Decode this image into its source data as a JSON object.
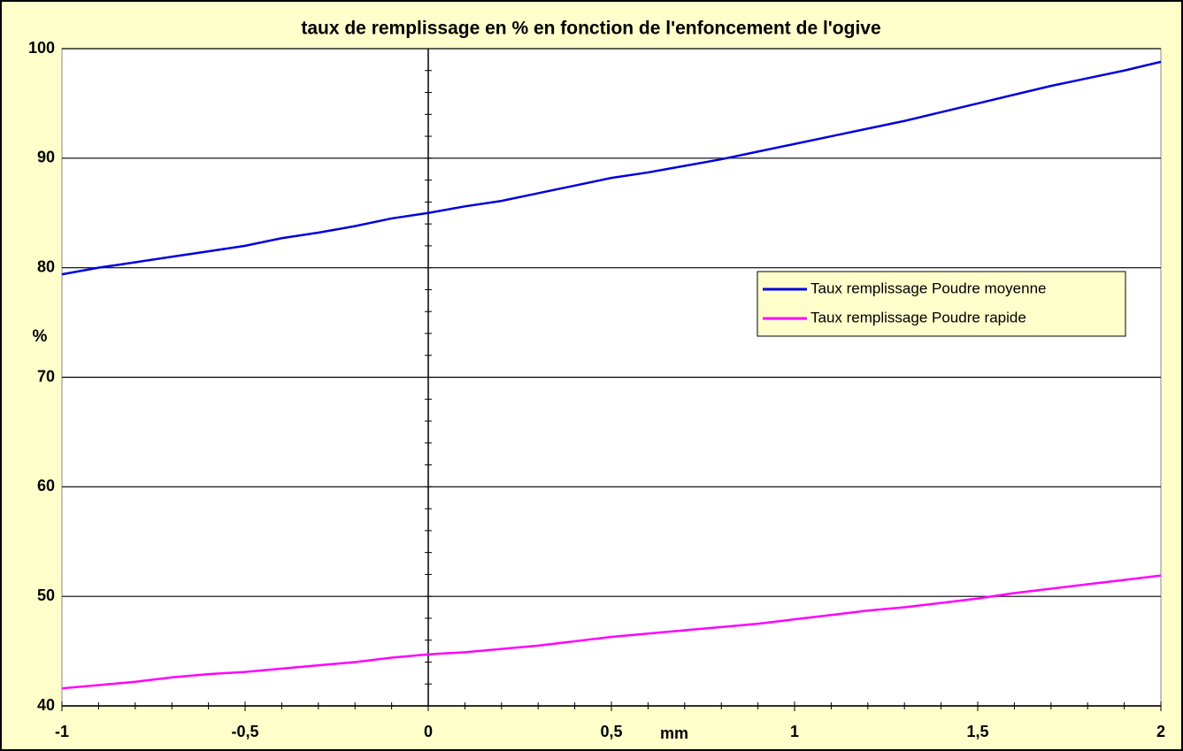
{
  "chart_data": {
    "type": "line",
    "title": "taux de remplissage  en % en fonction de l'enfoncement de l'ogive",
    "x_label": "mm",
    "y_label": "%",
    "x": [
      -1,
      -0.9,
      -0.8,
      -0.7,
      -0.6,
      -0.5,
      -0.4,
      -0.3,
      -0.2,
      -0.1,
      0,
      0.1,
      0.2,
      0.3,
      0.4,
      0.5,
      0.6,
      0.7,
      0.8,
      0.9,
      1,
      1.1,
      1.2,
      1.3,
      1.4,
      1.5,
      1.6,
      1.7,
      1.8,
      1.9,
      2
    ],
    "series": [
      {
        "name": "Taux remplissage Poudre moyenne",
        "color": "#0000dd",
        "values": [
          79.4,
          80,
          80.5,
          81,
          81.5,
          82,
          82.7,
          83.2,
          83.8,
          84.5,
          85,
          85.6,
          86.1,
          86.8,
          87.5,
          88.2,
          88.7,
          89.3,
          89.9,
          90.6,
          91.3,
          92,
          92.7,
          93.4,
          94.2,
          95,
          95.8,
          96.6,
          97.3,
          98,
          98.8
        ]
      },
      {
        "name": "Taux remplissage Poudre rapide",
        "color": "#ff00ff",
        "values": [
          41.6,
          41.9,
          42.2,
          42.6,
          42.9,
          43.1,
          43.4,
          43.7,
          44,
          44.4,
          44.7,
          44.9,
          45.2,
          45.5,
          45.9,
          46.3,
          46.6,
          46.9,
          47.2,
          47.5,
          47.9,
          48.3,
          48.7,
          49,
          49.4,
          49.8,
          50.3,
          50.7,
          51.1,
          51.5,
          51.9
        ]
      }
    ],
    "xlim": [
      -1,
      2
    ],
    "xticks": [
      -1,
      {
        "value": -0.5,
        "label": "-0,5"
      },
      0,
      {
        "value": 0.5,
        "label": "0,5"
      },
      1,
      {
        "value": 1.5,
        "label": "1,5"
      },
      2
    ],
    "xminor": 0.1,
    "ylim": [
      40,
      100
    ],
    "yticks": [
      40,
      50,
      60,
      70,
      80,
      90,
      100
    ],
    "yminor": 2,
    "grid": true,
    "legend": "right"
  }
}
